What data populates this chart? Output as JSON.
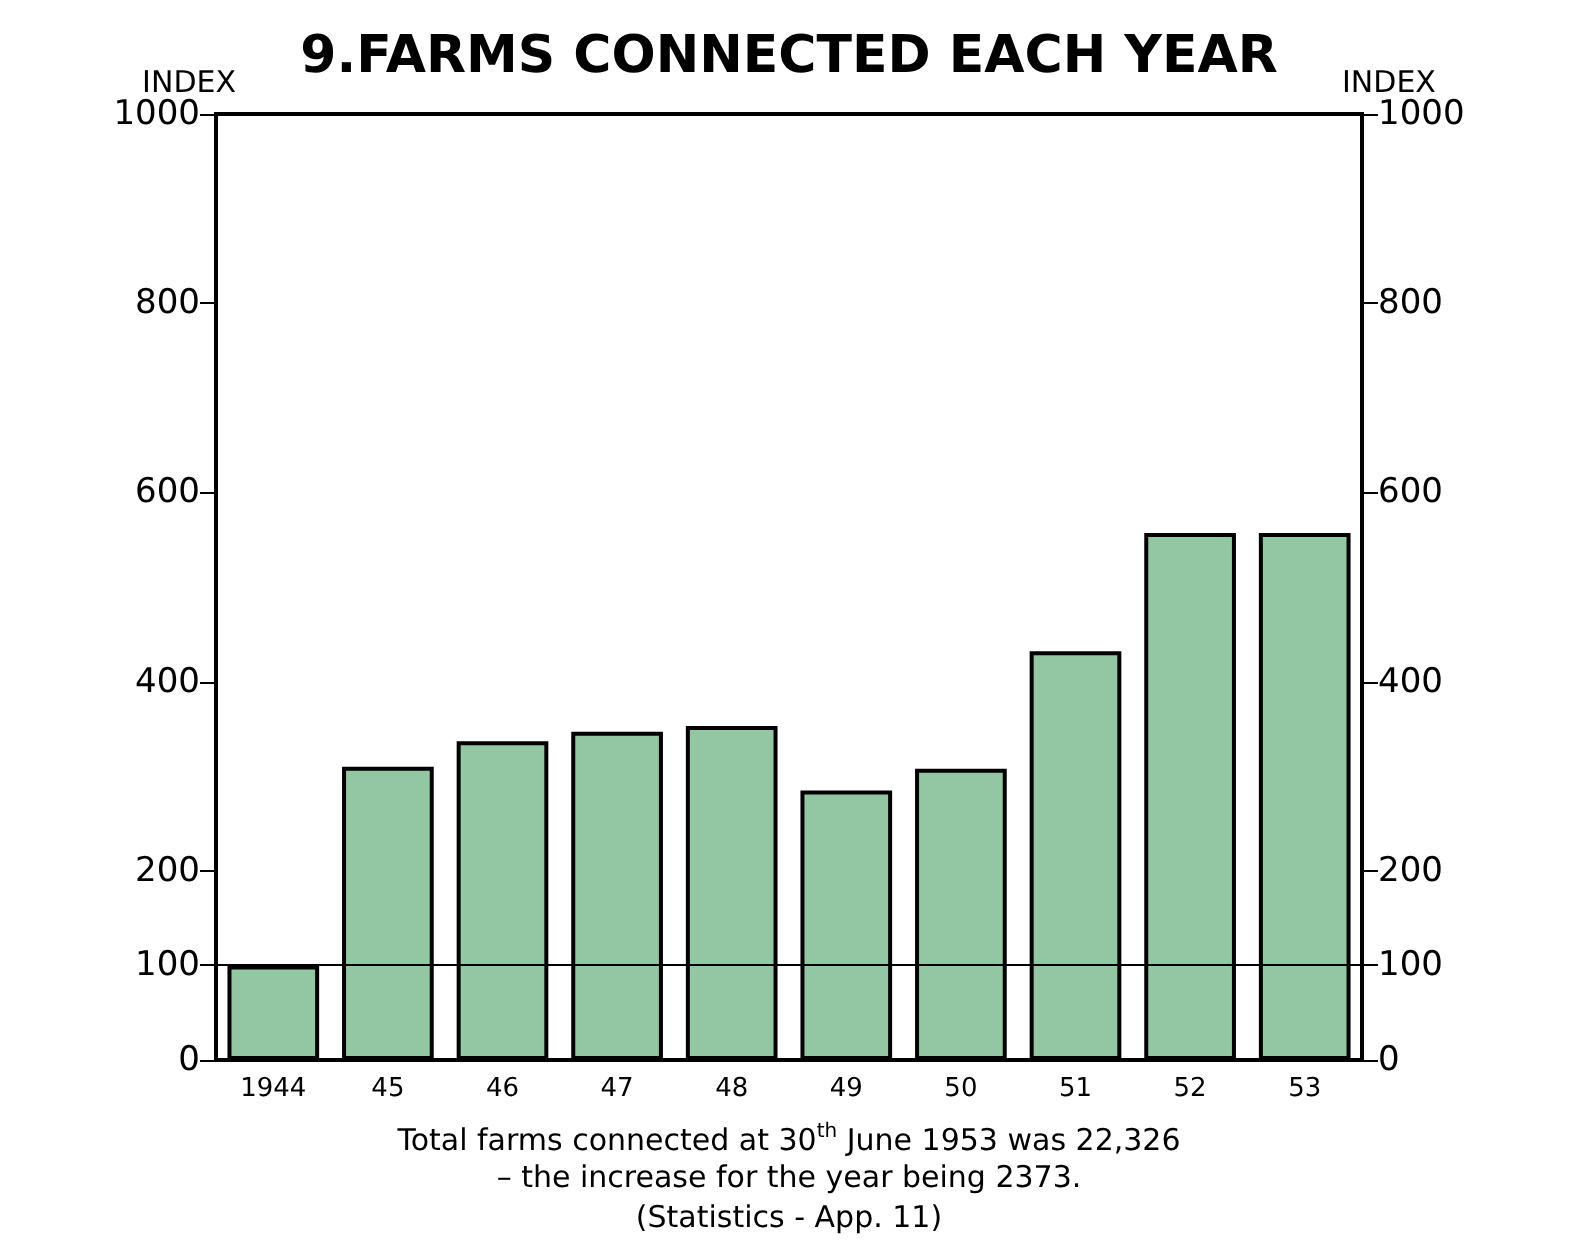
{
  "chart_data": {
    "type": "bar",
    "title": "9.FARMS CONNECTED EACH YEAR",
    "ylabel": "INDEX",
    "y2label": "INDEX",
    "categories": [
      "1944",
      "45",
      "46",
      "47",
      "48",
      "49",
      "50",
      "51",
      "52",
      "53"
    ],
    "values": [
      100,
      310,
      337,
      347,
      353,
      285,
      308,
      432,
      557,
      557
    ],
    "color": "#93c6a3",
    "ylim": [
      0,
      1000
    ],
    "yticks": [
      0,
      100,
      200,
      400,
      600,
      800,
      1000
    ],
    "y2lim": [
      0,
      1000
    ],
    "y2ticks": [
      0,
      100,
      200,
      400,
      600,
      800,
      1000
    ],
    "ref_lines": [
      {
        "axis": "y",
        "value": 100,
        "label": null,
        "color": "#000000"
      }
    ],
    "grid": false,
    "annotations": [
      "Total farms connected at 30$^{th}$ June 1953 was 22,326",
      "– the increase for the year being 2373.",
      "(Statistics - App. 11)"
    ]
  }
}
